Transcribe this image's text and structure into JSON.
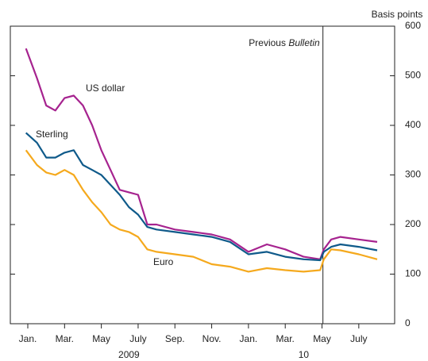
{
  "chart_data": {
    "type": "line",
    "y_axis_label": "Basis points",
    "x": [
      -0.1,
      0.5,
      1,
      1.5,
      2,
      2.5,
      3,
      3.5,
      4,
      4.5,
      5,
      5.5,
      6,
      6.5,
      7,
      8,
      9,
      10,
      11,
      12,
      13,
      14,
      15,
      15.9,
      16.1,
      16.5,
      17,
      18,
      19
    ],
    "series": [
      {
        "name": "US dollar",
        "color": "#a6238f",
        "values": [
          555,
          495,
          440,
          430,
          455,
          460,
          440,
          400,
          350,
          310,
          270,
          265,
          260,
          200,
          200,
          190,
          185,
          180,
          170,
          145,
          160,
          150,
          135,
          130,
          150,
          170,
          175,
          170,
          165
        ]
      },
      {
        "name": "Sterling",
        "color": "#0f5a8a",
        "values": [
          385,
          365,
          335,
          335,
          345,
          350,
          320,
          310,
          300,
          280,
          260,
          235,
          220,
          195,
          190,
          185,
          180,
          175,
          165,
          140,
          145,
          135,
          130,
          128,
          145,
          155,
          160,
          155,
          148
        ]
      },
      {
        "name": "Euro",
        "color": "#f5a91d",
        "values": [
          350,
          320,
          305,
          300,
          310,
          300,
          270,
          245,
          225,
          200,
          190,
          185,
          175,
          150,
          145,
          140,
          135,
          120,
          115,
          105,
          112,
          108,
          105,
          108,
          130,
          150,
          148,
          140,
          130
        ]
      }
    ],
    "xlim": [
      -0.95,
      19.95
    ],
    "xticks": [
      {
        "value": 0,
        "label": "Jan."
      },
      {
        "value": 2,
        "label": "Mar."
      },
      {
        "value": 4,
        "label": "May"
      },
      {
        "value": 6,
        "label": "July"
      },
      {
        "value": 8,
        "label": "Sep."
      },
      {
        "value": 10,
        "label": "Nov."
      },
      {
        "value": 12,
        "label": "Jan."
      },
      {
        "value": 14,
        "label": "Mar."
      },
      {
        "value": 16,
        "label": "May"
      },
      {
        "value": 18,
        "label": "July"
      }
    ],
    "year_labels": [
      {
        "value": 5.5,
        "label": "2009"
      },
      {
        "value": 15,
        "label": "10"
      }
    ],
    "ylim": [
      0,
      600
    ],
    "yticks": [
      0,
      100,
      200,
      300,
      400,
      500,
      600
    ],
    "marker_line": {
      "value": 16.05,
      "label": "Previous ",
      "label_italic": "Bulletin"
    }
  }
}
